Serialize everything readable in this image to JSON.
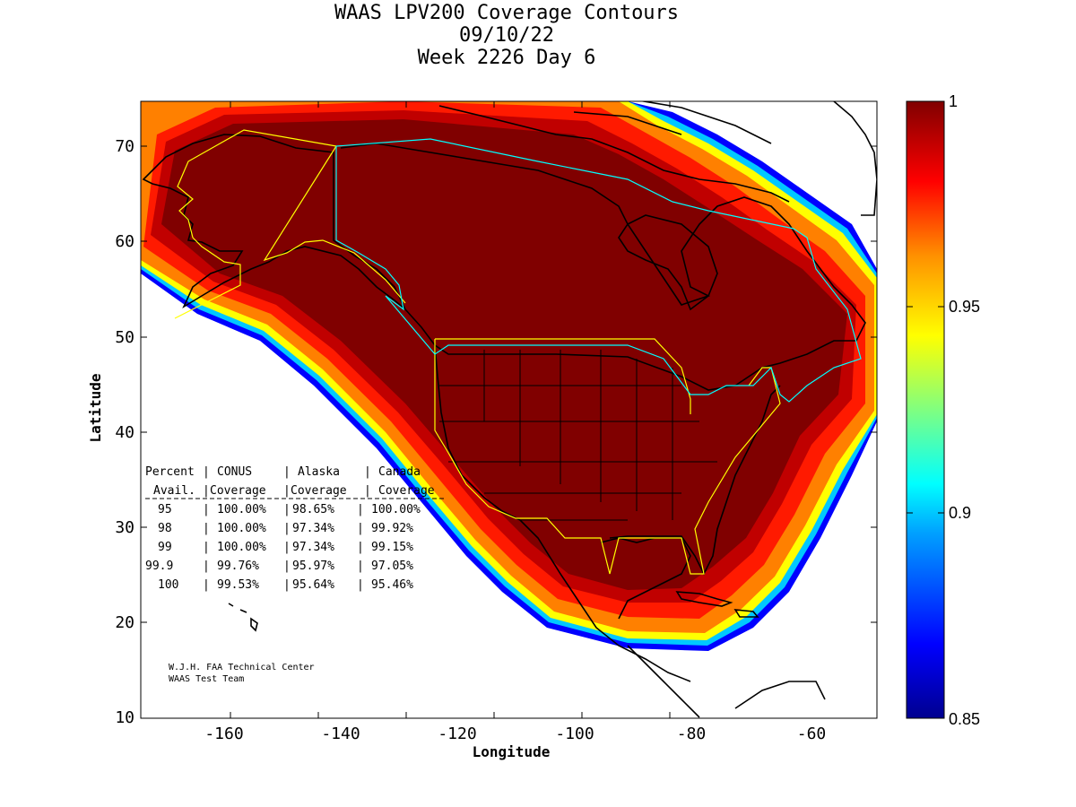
{
  "title": {
    "line1": "WAAS LPV200 Coverage Contours",
    "line2": "09/10/22",
    "line3": "Week 2226 Day 6"
  },
  "axes": {
    "xlabel": "Longitude",
    "ylabel": "Latitude",
    "x_ticks": [
      "-160",
      "-140",
      "-120",
      "-100",
      "-80",
      "-60"
    ],
    "y_ticks": [
      "70",
      "60",
      "50",
      "40",
      "30",
      "20",
      "10"
    ],
    "xlim": [
      -175,
      -50
    ],
    "ylim": [
      10,
      75
    ]
  },
  "colorbar": {
    "ticks": [
      "1",
      "0.95",
      "0.9",
      "0.85"
    ],
    "range": [
      0.85,
      1
    ],
    "colormap": "jet",
    "colors": [
      "#00008f",
      "#0000ff",
      "#00a0ff",
      "#00ffff",
      "#80ff80",
      "#ffff00",
      "#ff9000",
      "#ff0000",
      "#800000"
    ]
  },
  "coverage_table": {
    "header1": [
      "Percent",
      "CONUS",
      "Alaska",
      "Canada"
    ],
    "header2": [
      "Avail.",
      "Coverage",
      "Coverage",
      "Coverage"
    ],
    "rows": [
      [
        "95",
        "100.00%",
        "98.65%",
        "100.00%"
      ],
      [
        "98",
        "100.00%",
        "97.34%",
        "99.92%"
      ],
      [
        "99",
        "100.00%",
        "97.34%",
        "99.15%"
      ],
      [
        "99.9",
        "99.76%",
        "95.97%",
        "97.05%"
      ],
      [
        "100",
        "99.53%",
        "95.64%",
        "95.46%"
      ]
    ]
  },
  "credit": {
    "line1": "W.J.H. FAA Technical Center",
    "line2": "WAAS Test Team"
  },
  "colors": {
    "coverage_core": "#800000",
    "service_boundary": "#ffff00",
    "canada_boundary": "#00ffff",
    "land_outline": "#000000"
  }
}
